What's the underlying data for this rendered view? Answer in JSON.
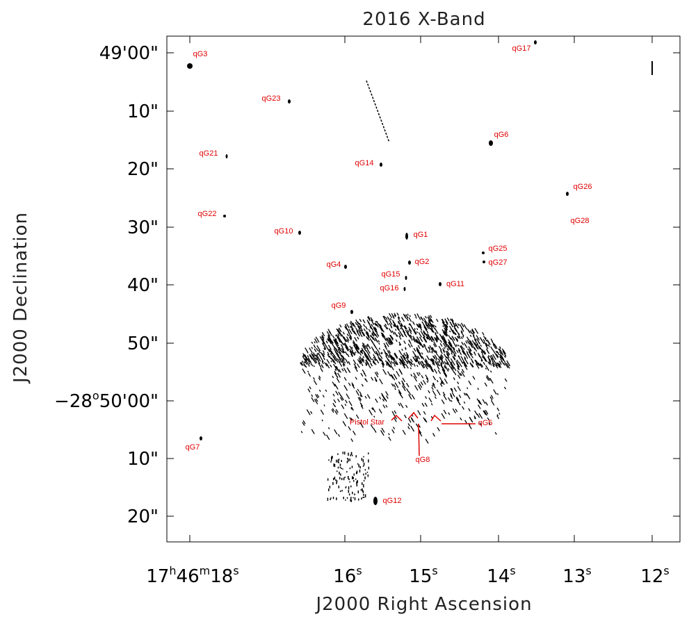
{
  "title": "2016 X-Band",
  "x_axis": {
    "label": "J2000 Right Ascension",
    "ticks": [
      [
        "17",
        "h",
        "46",
        "m",
        "18",
        "s"
      ],
      [
        "16",
        "s"
      ],
      [
        "15",
        "s"
      ],
      [
        "14",
        "s"
      ],
      [
        "13",
        "s"
      ],
      [
        "12",
        "s"
      ]
    ]
  },
  "y_axis": {
    "label": "J2000 Declination",
    "ticks": [
      [
        "49'00\""
      ],
      [
        "10\""
      ],
      [
        "20\""
      ],
      [
        "30\""
      ],
      [
        "40\""
      ],
      [
        "50\""
      ],
      [
        "−28",
        "o",
        "50'00\""
      ],
      [
        "10\""
      ],
      [
        "20\""
      ]
    ]
  },
  "sources": [
    "qG3",
    "qG17",
    "qG23",
    "qG6",
    "qG21",
    "qG14",
    "qG26",
    "qG22",
    "qG28",
    "qG10",
    "qG1",
    "qG25",
    "qG2",
    "qG27",
    "qG4",
    "qG15",
    "qG11",
    "qG16",
    "qG9",
    "Pistol Star",
    "qG5",
    "qG8",
    "qG7",
    "qG12"
  ]
}
